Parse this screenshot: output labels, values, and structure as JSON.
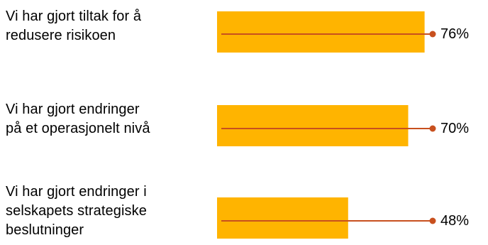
{
  "chart_data": {
    "type": "bar",
    "orientation": "horizontal",
    "categories": [
      "Vi har gjort tiltak for å\nredusere risikoen",
      "Vi har gjort endringer\npå et operasjonelt nivå",
      "Vi har gjort endringer i\nselskapets strategiske\nbeslutninger"
    ],
    "values": [
      76,
      70,
      48
    ],
    "value_labels": [
      "76%",
      "70%",
      "48%"
    ],
    "xlim": [
      0,
      100
    ],
    "bar_color": "#FFB400",
    "line_color": "#C8501E",
    "grid": false,
    "legend": "none"
  }
}
